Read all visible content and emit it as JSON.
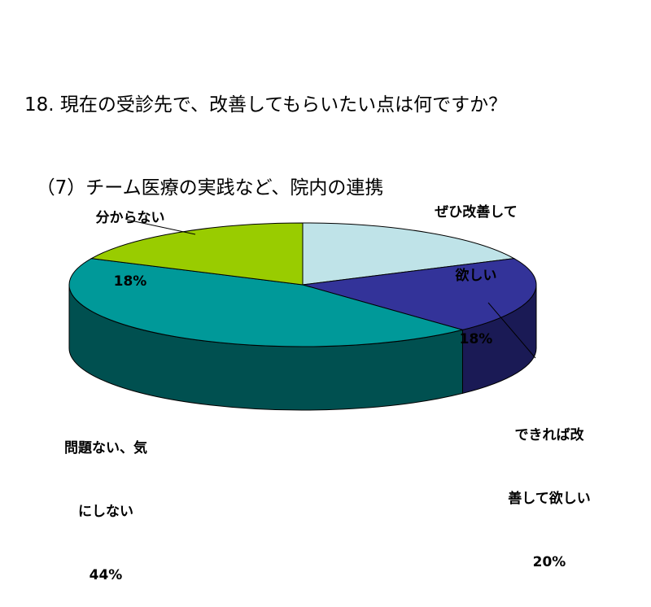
{
  "title": {
    "line1": "18. 現在の受診先で、改善してもらいたい点は何ですか？",
    "line2": "  （7）チーム医療の実践など、院内の連携"
  },
  "chart_data": {
    "type": "pie",
    "title": "18. 現在の受診先で、改善してもらいたい点は何ですか？ （7）チーム医療の実践など、院内の連携",
    "slices": [
      {
        "label": "ぜひ改善して欲しい",
        "value": 18,
        "percent_label": "18%",
        "color": "#bfe3e8",
        "side_color": "#6d8f94"
      },
      {
        "label": "できれば改善して欲しい",
        "value": 20,
        "percent_label": "20%",
        "color": "#333399",
        "side_color": "#1a1a55"
      },
      {
        "label": "問題ない、気にしない",
        "value": 44,
        "percent_label": "44%",
        "color": "#009999",
        "side_color": "#005050"
      },
      {
        "label": "分からない",
        "value": 18,
        "percent_label": "18%",
        "color": "#99cc00",
        "side_color": "#557000"
      }
    ]
  },
  "labels": {
    "slice0": {
      "line1": "ぜひ改善して",
      "line2": "欲しい",
      "pct": "18%"
    },
    "slice1": {
      "line1": "できれば改",
      "line2": "善して欲しい",
      "pct": "20%"
    },
    "slice2": {
      "line1": "問題ない、気",
      "line2": "にしない",
      "pct": "44%"
    },
    "slice3": {
      "line1": "分からない",
      "pct": "18%"
    }
  }
}
